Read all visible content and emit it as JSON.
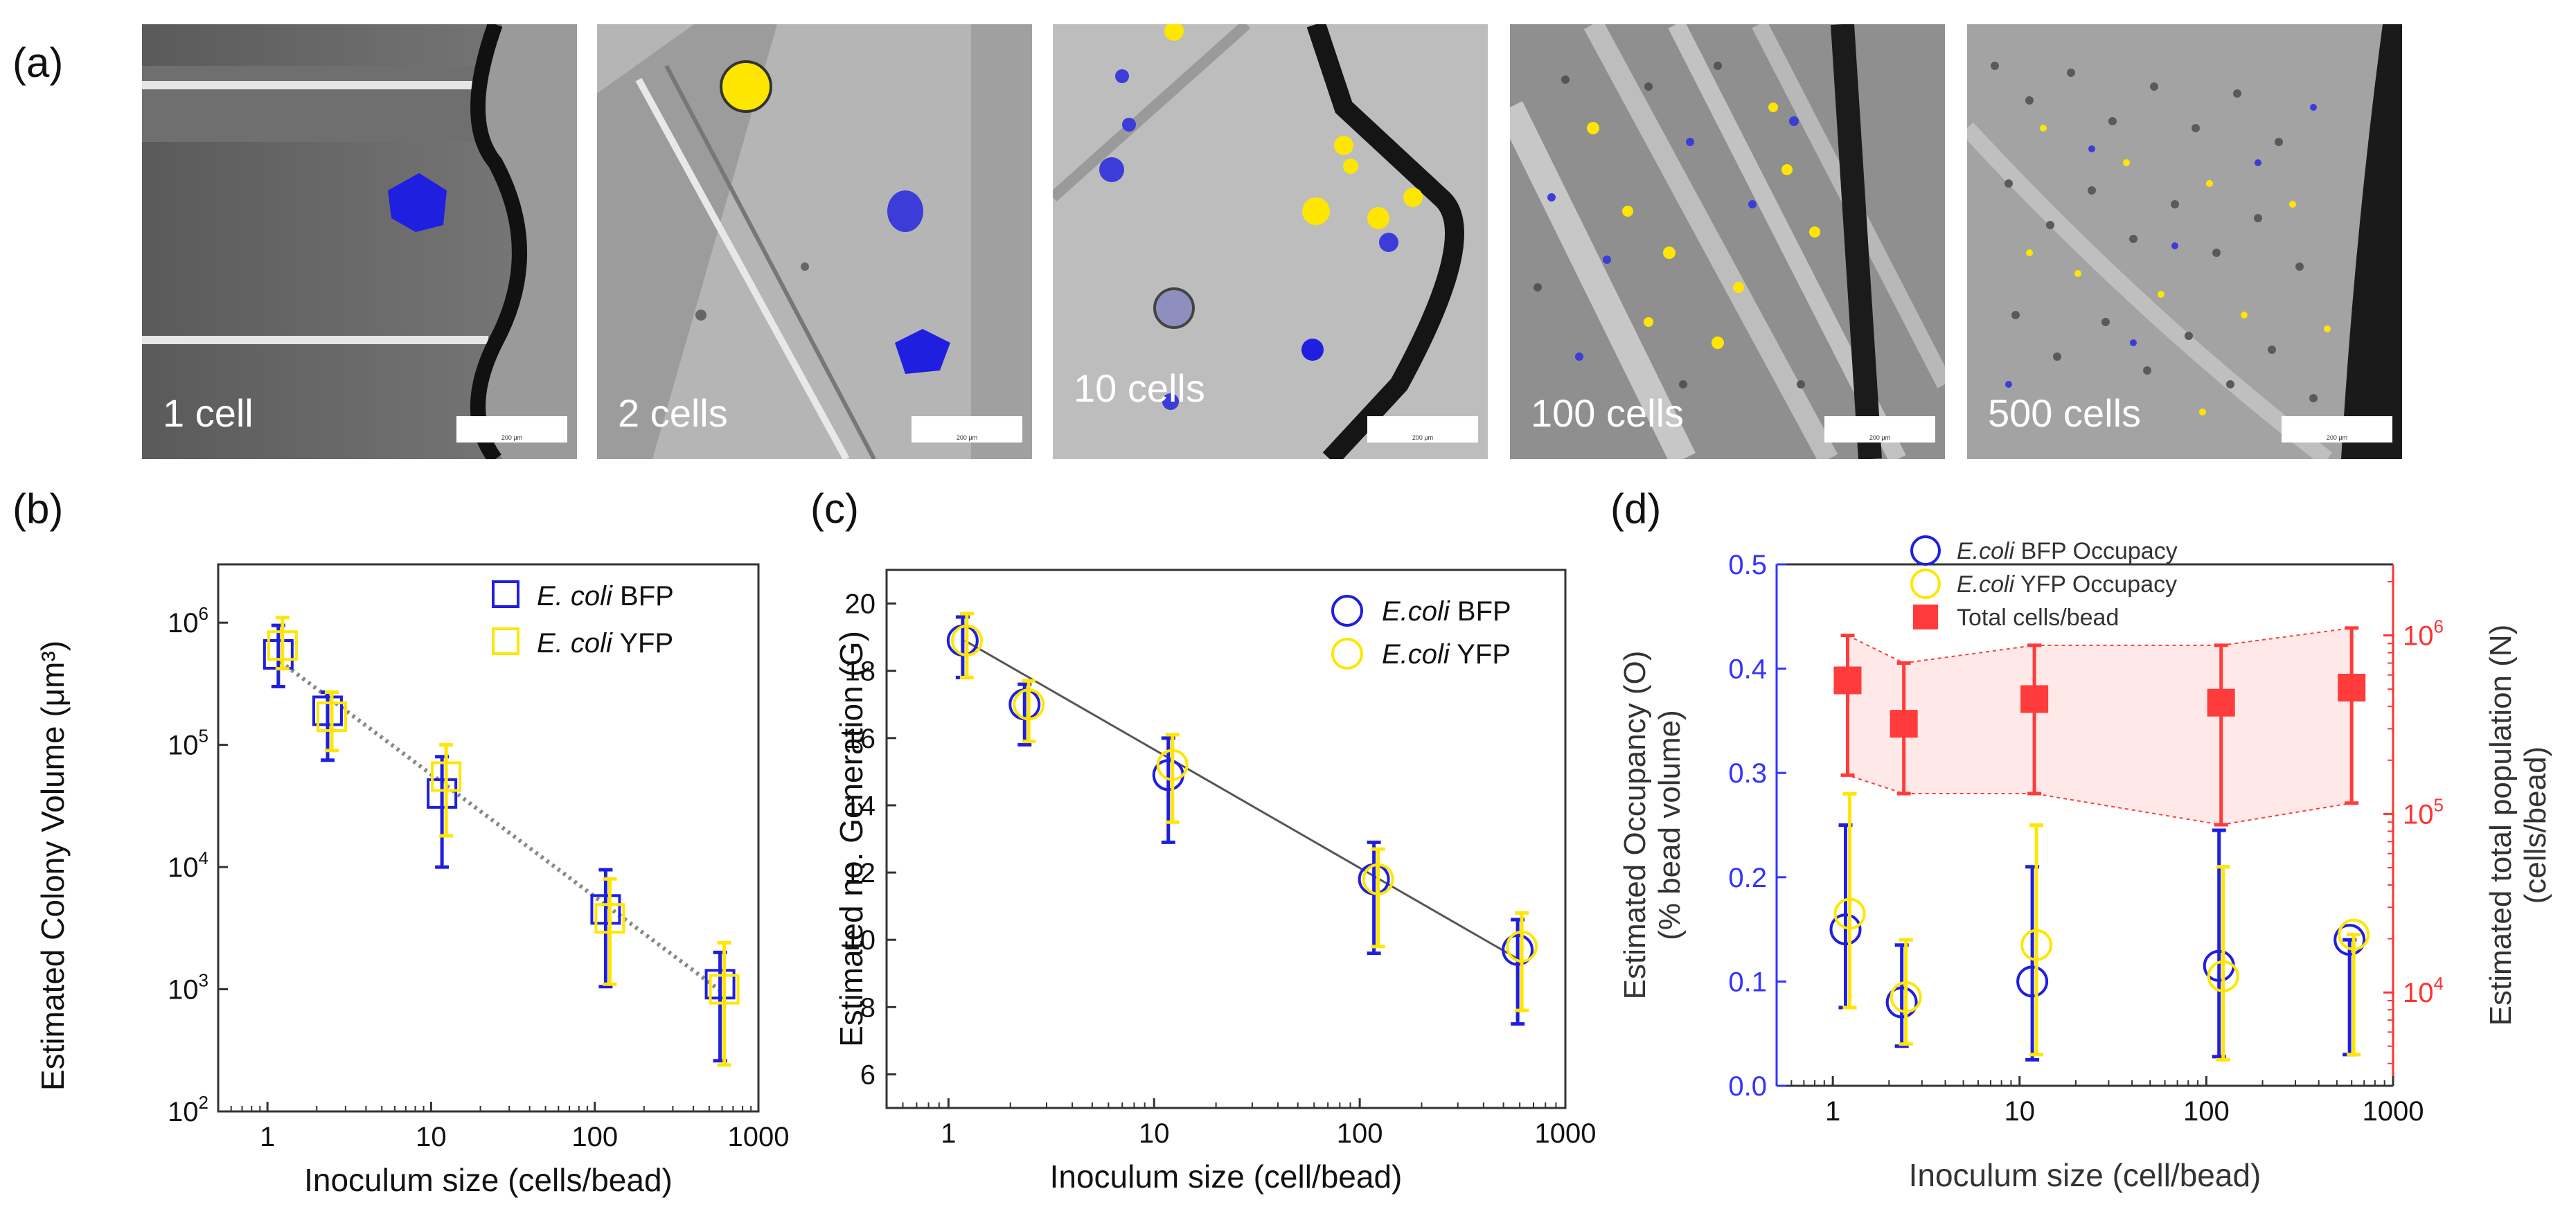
{
  "panel_labels": {
    "a": "(a)",
    "b": "(b)",
    "c": "(c)",
    "d": "(d)"
  },
  "micrographs": [
    {
      "label": "1 cell",
      "scale": "200 μm"
    },
    {
      "label": "2 cells",
      "scale": "200 μm"
    },
    {
      "label": "10 cells",
      "scale": "200 μm"
    },
    {
      "label": "100 cells",
      "scale": "200 μm"
    },
    {
      "label": "500 cells",
      "scale": "200 μm"
    }
  ],
  "colors": {
    "blue": "#1f1fe0",
    "yellow": "#ffe600",
    "red": "#ff3b3b",
    "axis_blue": "#3333ff",
    "axis_red": "#ff3333"
  },
  "chart_data": [
    {
      "panel": "b",
      "type": "scatter",
      "ylabel": "Estimated Colony Volume (μm³)",
      "xlabel": "Inoculum size (cells/bead)",
      "xscale": "log",
      "yscale": "log",
      "xlim": [
        0.5,
        1000
      ],
      "ylim": [
        100,
        3000000
      ],
      "x_ticks": [
        1,
        10,
        100,
        1000
      ],
      "x_tick_labels": [
        "1",
        "10",
        "100",
        "1000"
      ],
      "y_ticks": [
        100,
        1000,
        10000,
        100000,
        1000000
      ],
      "y_tick_labels": [
        {
          "base": "10",
          "exp": "2"
        },
        {
          "base": "10",
          "exp": "3"
        },
        {
          "base": "10",
          "exp": "4"
        },
        {
          "base": "10",
          "exp": "5"
        },
        {
          "base": "10",
          "exp": "6"
        }
      ],
      "legend": [
        {
          "italic": "E. coli",
          "rest": " BFP"
        },
        {
          "italic": "E. coli",
          "rest": " YFP"
        }
      ],
      "x": [
        1.2,
        2.4,
        12,
        120,
        600
      ],
      "series": [
        {
          "name": "E. coli BFP",
          "marker": "square",
          "values": [
            550000,
            190000,
            40000,
            4500,
            1100
          ],
          "err_low": [
            300000,
            75000,
            10000,
            1050,
            260
          ],
          "err_high": [
            950000,
            270000,
            80000,
            9500,
            2000
          ]
        },
        {
          "name": "E. coli YFP",
          "marker": "square",
          "values": [
            650000,
            170000,
            55000,
            3800,
            1000
          ],
          "err_low": [
            420000,
            90000,
            18000,
            1100,
            240
          ],
          "err_high": [
            1100000,
            270000,
            100000,
            8000,
            2400
          ]
        }
      ],
      "fit_line": {
        "x": [
          1.2,
          600
        ],
        "y": [
          480000,
          950
        ]
      }
    },
    {
      "panel": "c",
      "type": "scatter",
      "ylabel": "Estimated no. Generation (G)",
      "xlabel": "Inoculum size (cell/bead)",
      "xscale": "log",
      "xlim": [
        0.5,
        1000
      ],
      "ylim": [
        5,
        21
      ],
      "x_ticks": [
        1,
        10,
        100,
        1000
      ],
      "x_tick_labels": [
        "1",
        "10",
        "100",
        "1000"
      ],
      "y_ticks": [
        6,
        8,
        10,
        12,
        14,
        16,
        18,
        20
      ],
      "y_tick_labels": [
        "6",
        "8",
        "10",
        "12",
        "14",
        "16",
        "18",
        "20"
      ],
      "legend": [
        {
          "italic": "E.coli",
          "rest": " BFP"
        },
        {
          "italic": "E.coli",
          "rest": " YFP"
        }
      ],
      "x": [
        1.2,
        2.4,
        12,
        120,
        600
      ],
      "series": [
        {
          "name": "E.coli BFP",
          "marker": "circle",
          "values": [
            18.9,
            17.0,
            14.9,
            11.8,
            9.7
          ],
          "err_low": [
            17.8,
            15.8,
            12.9,
            9.6,
            7.5
          ],
          "err_high": [
            19.6,
            17.6,
            16.0,
            12.9,
            10.6
          ]
        },
        {
          "name": "E.coli YFP",
          "marker": "circle",
          "values": [
            18.9,
            17.0,
            15.2,
            11.8,
            9.8
          ],
          "err_low": [
            17.8,
            15.9,
            13.5,
            9.8,
            7.9
          ],
          "err_high": [
            19.7,
            17.7,
            16.1,
            12.7,
            10.8
          ]
        }
      ],
      "fit_line": {
        "x": [
          1.2,
          600
        ],
        "y": [
          18.9,
          9.4
        ]
      }
    },
    {
      "panel": "d",
      "type": "scatter",
      "ylabel_left_1": "Estimated Occupancy (O)",
      "ylabel_left_2": "(% bead volume)",
      "ylabel_right_1": "Estimated total population (N)",
      "ylabel_right_2": "(cells/bead)",
      "xlabel": "Inoculum size (cell/bead)",
      "xscale": "log",
      "xlim": [
        0.5,
        1000
      ],
      "ylim_left": [
        0.0,
        0.5
      ],
      "ylim_right": [
        3000,
        2500000
      ],
      "x_ticks": [
        1,
        10,
        100,
        1000
      ],
      "x_tick_labels": [
        "1",
        "10",
        "100",
        "1000"
      ],
      "y_left_ticks": [
        0.0,
        0.1,
        0.2,
        0.3,
        0.4,
        0.5
      ],
      "y_left_tick_labels": [
        "0.0",
        "0.1",
        "0.2",
        "0.3",
        "0.4",
        "0.5"
      ],
      "y_right_ticks": [
        10000,
        100000,
        1000000
      ],
      "y_right_tick_labels": [
        {
          "base": "10",
          "exp": "4"
        },
        {
          "base": "10",
          "exp": "5"
        },
        {
          "base": "10",
          "exp": "6"
        }
      ],
      "legend": [
        {
          "italic": "E.coli",
          "rest": " BFP Occupacy"
        },
        {
          "italic": "E.coli",
          "rest": " YFP Occupacy"
        },
        {
          "italic": "",
          "rest": "Total cells/bead"
        }
      ],
      "x": [
        1.2,
        2.4,
        12,
        120,
        600
      ],
      "series": [
        {
          "name": "E.coli BFP Occupacy",
          "axis": "left",
          "marker": "circle",
          "values": [
            0.15,
            0.08,
            0.1,
            0.115,
            0.14
          ],
          "err_low": [
            0.075,
            0.038,
            0.025,
            0.028,
            0.03
          ],
          "err_high": [
            0.25,
            0.135,
            0.21,
            0.245,
            0.14
          ]
        },
        {
          "name": "E.coli YFP Occupacy",
          "axis": "left",
          "marker": "circle",
          "values": [
            0.165,
            0.085,
            0.135,
            0.105,
            0.145
          ],
          "err_low": [
            0.075,
            0.04,
            0.03,
            0.025,
            0.03
          ],
          "err_high": [
            0.28,
            0.14,
            0.25,
            0.21,
            0.145
          ]
        },
        {
          "name": "Total cells/bead",
          "axis": "right",
          "marker": "filled-square",
          "values": [
            560000,
            320000,
            440000,
            420000,
            510000
          ],
          "err_low": [
            165000,
            130000,
            130000,
            87000,
            115000
          ],
          "err_high": [
            1000000,
            700000,
            880000,
            880000,
            1100000
          ]
        }
      ]
    }
  ]
}
